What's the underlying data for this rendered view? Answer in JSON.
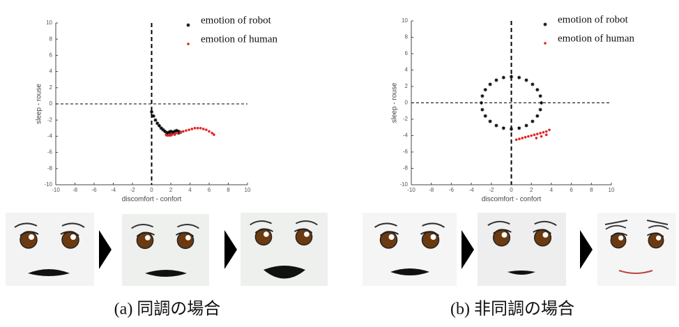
{
  "chart_data": [
    {
      "type": "scatter",
      "caption": "(a) 同調の場合",
      "xlabel": "discomfort - confort",
      "ylabel": "sleep - rouse",
      "xlim": [
        -10,
        10
      ],
      "ylim": [
        -10,
        10
      ],
      "xticks": [
        -10,
        -8,
        -6,
        -4,
        -2,
        0,
        2,
        4,
        6,
        8,
        10
      ],
      "yticks": [
        -10,
        -8,
        -6,
        -4,
        -2,
        0,
        2,
        4,
        6,
        8,
        10
      ],
      "zero_lines": true,
      "series": [
        {
          "name": "emotion of robot",
          "color": "#000000",
          "marker": "star",
          "x": [
            0,
            0.2,
            0.4,
            0.6,
            0.8,
            1.0,
            1.2,
            1.4,
            1.6,
            1.8,
            2.0,
            2.2,
            2.4,
            2.6,
            2.8,
            3.0,
            1.6,
            2.0,
            2.4,
            2.8
          ],
          "values": [
            -1,
            -1.5,
            -2,
            -2.4,
            -2.7,
            -3,
            -3.2,
            -3.4,
            -3.6,
            -3.5,
            -3.4,
            -3.5,
            -3.4,
            -3.3,
            -3.4,
            -3.5,
            -3.8,
            -3.8,
            -3.7,
            -3.6
          ]
        },
        {
          "name": "emotion of human",
          "color": "#e02424",
          "marker": "dot",
          "x": [
            1.5,
            1.8,
            2.1,
            2.4,
            2.7,
            3.0,
            3.3,
            3.6,
            3.9,
            4.2,
            4.5,
            4.8,
            5.1,
            5.4,
            5.7,
            6.0,
            6.3,
            6.5,
            1.6,
            2.0,
            2.4
          ],
          "values": [
            -3.8,
            -3.9,
            -3.8,
            -3.7,
            -3.6,
            -3.5,
            -3.4,
            -3.3,
            -3.2,
            -3.1,
            -3.0,
            -3.0,
            -3.0,
            -3.1,
            -3.2,
            -3.4,
            -3.6,
            -3.8,
            -3.9,
            -3.9,
            -3.8
          ]
        }
      ]
    },
    {
      "type": "scatter",
      "caption": "(b) 非同調の場合",
      "xlabel": "discomfort - confort",
      "ylabel": "sleep - rouse",
      "xlim": [
        -10,
        10
      ],
      "ylim": [
        -10,
        10
      ],
      "xticks": [
        -10,
        -8,
        -6,
        -4,
        -2,
        0,
        2,
        4,
        6,
        8,
        10
      ],
      "yticks": [
        -10,
        -8,
        -6,
        -4,
        -2,
        0,
        2,
        4,
        6,
        8,
        10
      ],
      "zero_lines": true,
      "series": [
        {
          "name": "emotion of robot",
          "color": "#000000",
          "marker": "star",
          "x": [
            3,
            2.9,
            2.6,
            2.12,
            1.5,
            0.78,
            0,
            -0.78,
            -1.5,
            -2.12,
            -2.6,
            -2.9,
            -3,
            -2.9,
            -2.6,
            -2.12,
            -1.5,
            -0.78,
            0,
            0.78,
            1.5,
            2.12,
            2.6,
            2.9
          ],
          "values": [
            0,
            0.83,
            1.6,
            2.26,
            2.77,
            3.09,
            3.2,
            3.09,
            2.77,
            2.26,
            1.6,
            0.83,
            0,
            -0.83,
            -1.6,
            -2.26,
            -2.77,
            -3.09,
            -3.2,
            -3.09,
            -2.77,
            -2.26,
            -1.6,
            -0.83
          ]
        },
        {
          "name": "emotion of human",
          "color": "#e02424",
          "marker": "dot",
          "x": [
            0.5,
            0.8,
            1.1,
            1.4,
            1.7,
            2.0,
            2.3,
            2.6,
            2.9,
            3.2,
            3.5,
            3.8,
            2.5,
            3.0,
            3.5
          ],
          "values": [
            -4.5,
            -4.4,
            -4.3,
            -4.2,
            -4.1,
            -4.0,
            -3.9,
            -3.8,
            -3.7,
            -3.6,
            -3.5,
            -3.3,
            -4.3,
            -4.1,
            -3.9
          ]
        }
      ]
    }
  ]
}
